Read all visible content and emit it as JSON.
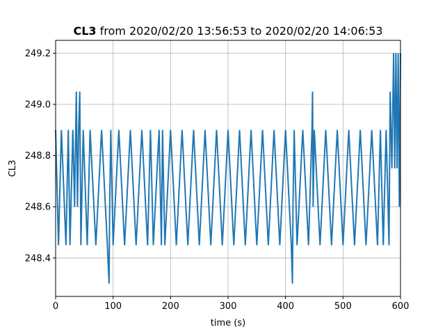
{
  "chart_data": {
    "type": "line",
    "title_bold": "CL3",
    "title_rest": " from 2020/02/20 13:56:53 to 2020/02/20 14:06:53",
    "xlabel": "time (s)",
    "ylabel": "CL3",
    "xlim": [
      0,
      600
    ],
    "ylim": [
      248.25,
      249.25
    ],
    "xticks": [
      0,
      100,
      200,
      300,
      400,
      500,
      600
    ],
    "yticks": [
      248.4,
      248.6,
      248.8,
      249.0,
      249.2
    ],
    "ytick_labels": [
      "248.4",
      "248.6",
      "248.8",
      "249.0",
      "249.2"
    ],
    "grid": true,
    "line_color": "#1f77b4",
    "series": [
      {
        "x": [
          0,
          5,
          10,
          18,
          22,
          25,
          30,
          33,
          36,
          38,
          40,
          42,
          44,
          48,
          55,
          60,
          70,
          80,
          90,
          93,
          94,
          96,
          100,
          110,
          120,
          130,
          140,
          150,
          160,
          165,
          170,
          180,
          184,
          186,
          190,
          200,
          210,
          220,
          230,
          240,
          250,
          260,
          270,
          280,
          290,
          300,
          310,
          320,
          330,
          340,
          350,
          360,
          370,
          380,
          390,
          400,
          410,
          412,
          413,
          415,
          420,
          430,
          440,
          446,
          447,
          448,
          450,
          460,
          470,
          480,
          490,
          500,
          510,
          520,
          530,
          540,
          550,
          560,
          565,
          570,
          575,
          580,
          582,
          585,
          588,
          590,
          592,
          594,
          596,
          598,
          600
        ],
        "y": [
          248.9,
          248.45,
          248.9,
          248.45,
          248.9,
          248.45,
          248.9,
          248.6,
          249.05,
          248.6,
          248.9,
          249.05,
          248.45,
          248.9,
          248.45,
          248.9,
          248.45,
          248.9,
          248.45,
          248.3,
          248.6,
          248.9,
          248.45,
          248.9,
          248.45,
          248.9,
          248.45,
          248.9,
          248.45,
          248.9,
          248.45,
          248.9,
          248.45,
          248.9,
          248.45,
          248.9,
          248.45,
          248.9,
          248.45,
          248.9,
          248.45,
          248.9,
          248.45,
          248.9,
          248.45,
          248.9,
          248.45,
          248.9,
          248.45,
          248.9,
          248.45,
          248.9,
          248.45,
          248.9,
          248.45,
          248.9,
          248.45,
          248.3,
          248.6,
          248.9,
          248.45,
          248.9,
          248.45,
          248.9,
          249.05,
          248.6,
          248.9,
          248.45,
          248.9,
          248.45,
          248.9,
          248.45,
          248.9,
          248.45,
          248.9,
          248.45,
          248.9,
          248.45,
          248.9,
          248.45,
          248.9,
          248.45,
          249.05,
          248.75,
          249.2,
          248.75,
          249.2,
          248.75,
          249.2,
          248.6,
          249.2
        ]
      }
    ]
  }
}
